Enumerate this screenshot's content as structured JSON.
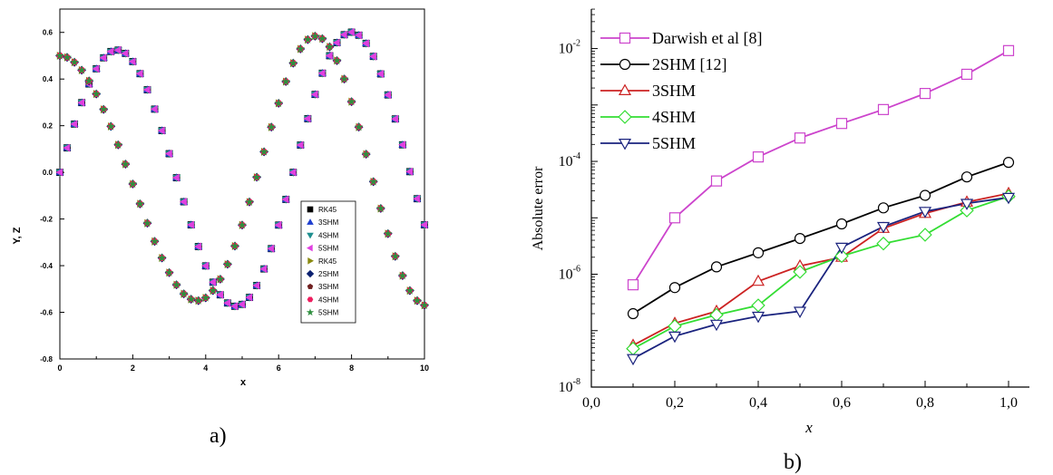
{
  "chart_data": [
    {
      "panel_label": "a)",
      "type": "scatter",
      "xlabel": "x",
      "ylabel": "Y, Z",
      "xlim": [
        0,
        10
      ],
      "ylim": [
        -0.8,
        0.7
      ],
      "x_ticks": [
        "0",
        "2",
        "4",
        "6",
        "8",
        "10"
      ],
      "y_ticks": [
        "-0.8",
        "-0.6",
        "-0.4",
        "-0.2",
        "0.0",
        "0.2",
        "0.4",
        "0.6"
      ],
      "grid": false,
      "legend_position": "center-right",
      "x": [
        0,
        0.2,
        0.4,
        0.6,
        0.8,
        1,
        1.2,
        1.4,
        1.6,
        1.8,
        2,
        2.2,
        2.4,
        2.6,
        2.8,
        3,
        3.2,
        3.4,
        3.6,
        3.8,
        4,
        4.2,
        4.4,
        4.6,
        4.8,
        5,
        5.2,
        5.4,
        5.6,
        5.8,
        6,
        6.2,
        6.4,
        6.6,
        6.8,
        7,
        7.2,
        7.4,
        7.6,
        7.8,
        8,
        8.2,
        8.4,
        8.6,
        8.8,
        9,
        9.2,
        9.4,
        9.6,
        9.8,
        10
      ],
      "series": [
        {
          "name": "RK45",
          "marker": "square",
          "color": "#000000",
          "values": [
            0,
            0.105,
            0.207,
            0.299,
            0.379,
            0.444,
            0.491,
            0.518,
            0.524,
            0.51,
            0.475,
            0.423,
            0.354,
            0.271,
            0.179,
            0.08,
            -0.023,
            -0.126,
            -0.225,
            -0.318,
            -0.401,
            -0.471,
            -0.525,
            -0.56,
            -0.574,
            -0.566,
            -0.536,
            -0.485,
            -0.414,
            -0.327,
            -0.226,
            -0.116,
            0,
            0.117,
            0.23,
            0.334,
            0.425,
            0.5,
            0.556,
            0.59,
            0.601,
            0.588,
            0.553,
            0.497,
            0.422,
            0.332,
            0.229,
            0.118,
            0.003,
            -0.113,
            -0.225
          ]
        },
        {
          "name": "3SHM",
          "marker": "triangle-up",
          "color": "#1f3fd0",
          "values": [
            0,
            0.105,
            0.207,
            0.299,
            0.379,
            0.444,
            0.491,
            0.518,
            0.524,
            0.51,
            0.475,
            0.423,
            0.354,
            0.271,
            0.179,
            0.08,
            -0.023,
            -0.126,
            -0.225,
            -0.318,
            -0.401,
            -0.471,
            -0.525,
            -0.56,
            -0.574,
            -0.566,
            -0.536,
            -0.485,
            -0.414,
            -0.327,
            -0.226,
            -0.116,
            0,
            0.117,
            0.23,
            0.334,
            0.425,
            0.5,
            0.556,
            0.59,
            0.601,
            0.588,
            0.553,
            0.497,
            0.422,
            0.332,
            0.229,
            0.118,
            0.003,
            -0.113,
            -0.225
          ]
        },
        {
          "name": "4SHM",
          "marker": "triangle-down",
          "color": "#1f8f8f",
          "values": [
            0,
            0.105,
            0.207,
            0.299,
            0.379,
            0.444,
            0.491,
            0.518,
            0.524,
            0.51,
            0.475,
            0.423,
            0.354,
            0.271,
            0.179,
            0.08,
            -0.023,
            -0.126,
            -0.225,
            -0.318,
            -0.401,
            -0.471,
            -0.525,
            -0.56,
            -0.574,
            -0.566,
            -0.536,
            -0.485,
            -0.414,
            -0.327,
            -0.226,
            -0.116,
            0,
            0.117,
            0.23,
            0.334,
            0.425,
            0.5,
            0.556,
            0.59,
            0.601,
            0.588,
            0.553,
            0.497,
            0.422,
            0.332,
            0.229,
            0.118,
            0.003,
            -0.113,
            -0.225
          ]
        },
        {
          "name": "5SHM",
          "marker": "triangle-left",
          "color": "#e040e0",
          "values": [
            0,
            0.105,
            0.207,
            0.299,
            0.379,
            0.444,
            0.491,
            0.518,
            0.524,
            0.51,
            0.475,
            0.423,
            0.354,
            0.271,
            0.179,
            0.08,
            -0.023,
            -0.126,
            -0.225,
            -0.318,
            -0.401,
            -0.471,
            -0.525,
            -0.56,
            -0.574,
            -0.566,
            -0.536,
            -0.485,
            -0.414,
            -0.327,
            -0.226,
            -0.116,
            0,
            0.117,
            0.23,
            0.334,
            0.425,
            0.5,
            0.556,
            0.59,
            0.601,
            0.588,
            0.553,
            0.497,
            0.422,
            0.332,
            0.229,
            0.118,
            0.003,
            -0.113,
            -0.225
          ]
        },
        {
          "name": "RK45",
          "marker": "triangle-right",
          "color": "#8a8a10",
          "values": [
            0.5,
            0.493,
            0.472,
            0.438,
            0.392,
            0.336,
            0.27,
            0.197,
            0.118,
            0.035,
            -0.05,
            -0.135,
            -0.218,
            -0.296,
            -0.367,
            -0.43,
            -0.482,
            -0.521,
            -0.544,
            -0.55,
            -0.538,
            -0.507,
            -0.458,
            -0.394,
            -0.316,
            -0.226,
            -0.127,
            -0.021,
            0.088,
            0.194,
            0.296,
            0.389,
            0.468,
            0.529,
            0.569,
            0.584,
            0.573,
            0.538,
            0.479,
            0.4,
            0.303,
            0.194,
            0.078,
            -0.04,
            -0.155,
            -0.263,
            -0.36,
            -0.443,
            -0.507,
            -0.55,
            -0.57
          ]
        },
        {
          "name": "2SHM",
          "marker": "diamond",
          "color": "#0a1f6f",
          "values": [
            0.5,
            0.493,
            0.472,
            0.438,
            0.392,
            0.336,
            0.27,
            0.197,
            0.118,
            0.035,
            -0.05,
            -0.135,
            -0.218,
            -0.296,
            -0.367,
            -0.43,
            -0.482,
            -0.521,
            -0.544,
            -0.55,
            -0.538,
            -0.507,
            -0.458,
            -0.394,
            -0.316,
            -0.226,
            -0.127,
            -0.021,
            0.088,
            0.194,
            0.296,
            0.389,
            0.468,
            0.529,
            0.569,
            0.584,
            0.573,
            0.538,
            0.479,
            0.4,
            0.303,
            0.194,
            0.078,
            -0.04,
            -0.155,
            -0.263,
            -0.36,
            -0.443,
            -0.507,
            -0.55,
            -0.57
          ]
        },
        {
          "name": "3SHM",
          "marker": "pentagon",
          "color": "#6f1f1f",
          "values": [
            0.5,
            0.493,
            0.472,
            0.438,
            0.392,
            0.336,
            0.27,
            0.197,
            0.118,
            0.035,
            -0.05,
            -0.135,
            -0.218,
            -0.296,
            -0.367,
            -0.43,
            -0.482,
            -0.521,
            -0.544,
            -0.55,
            -0.538,
            -0.507,
            -0.458,
            -0.394,
            -0.316,
            -0.226,
            -0.127,
            -0.021,
            0.088,
            0.194,
            0.296,
            0.389,
            0.468,
            0.529,
            0.569,
            0.584,
            0.573,
            0.538,
            0.479,
            0.4,
            0.303,
            0.194,
            0.078,
            -0.04,
            -0.155,
            -0.263,
            -0.36,
            -0.443,
            -0.507,
            -0.55,
            -0.57
          ]
        },
        {
          "name": "4SHM",
          "marker": "hexagon",
          "color": "#ee1f5f",
          "values": [
            0.5,
            0.493,
            0.472,
            0.438,
            0.392,
            0.336,
            0.27,
            0.197,
            0.118,
            0.035,
            -0.05,
            -0.135,
            -0.218,
            -0.296,
            -0.367,
            -0.43,
            -0.482,
            -0.521,
            -0.544,
            -0.55,
            -0.538,
            -0.507,
            -0.458,
            -0.394,
            -0.316,
            -0.226,
            -0.127,
            -0.021,
            0.088,
            0.194,
            0.296,
            0.389,
            0.468,
            0.529,
            0.569,
            0.584,
            0.573,
            0.538,
            0.479,
            0.4,
            0.303,
            0.194,
            0.078,
            -0.04,
            -0.155,
            -0.263,
            -0.36,
            -0.443,
            -0.507,
            -0.55,
            -0.57
          ]
        },
        {
          "name": "5SHM",
          "marker": "star",
          "color": "#2f8f3f",
          "values": [
            0.5,
            0.493,
            0.472,
            0.438,
            0.392,
            0.336,
            0.27,
            0.197,
            0.118,
            0.035,
            -0.05,
            -0.135,
            -0.218,
            -0.296,
            -0.367,
            -0.43,
            -0.482,
            -0.521,
            -0.544,
            -0.55,
            -0.538,
            -0.507,
            -0.458,
            -0.394,
            -0.316,
            -0.226,
            -0.127,
            -0.021,
            0.088,
            0.194,
            0.296,
            0.389,
            0.468,
            0.529,
            0.569,
            0.584,
            0.573,
            0.538,
            0.479,
            0.4,
            0.303,
            0.194,
            0.078,
            -0.04,
            -0.155,
            -0.263,
            -0.36,
            -0.443,
            -0.507,
            -0.55,
            -0.57
          ]
        }
      ]
    },
    {
      "panel_label": "b)",
      "type": "line",
      "xlabel": "x",
      "ylabel": "Absolute error",
      "xlim": [
        0,
        1.05
      ],
      "ylim_log10": [
        -8,
        -1.3
      ],
      "log_y": true,
      "x_ticks": [
        "0,0",
        "0,2",
        "0,4",
        "0,6",
        "0,8",
        "1,0"
      ],
      "y_ticks": [
        {
          "base": "10",
          "exp": "-8"
        },
        {
          "base": "10",
          "exp": "-6"
        },
        {
          "base": "10",
          "exp": "-4"
        },
        {
          "base": "10",
          "exp": "-2"
        }
      ],
      "grid": false,
      "legend_position": "top-left",
      "x": [
        0.1,
        0.2,
        0.3,
        0.4,
        0.5,
        0.6,
        0.7,
        0.8,
        0.9,
        1.0
      ],
      "series": [
        {
          "name": "Darwish et al [8]",
          "marker": "square",
          "color": "#cc44cc",
          "values": [
            6.5e-07,
            1e-05,
            4.5e-05,
            0.00012,
            0.00026,
            0.00047,
            0.00083,
            0.0016,
            0.0035,
            0.0092
          ]
        },
        {
          "name": "2SHM [12]",
          "marker": "circle",
          "color": "#000000",
          "values": [
            2e-07,
            5.8e-07,
            1.35e-06,
            2.4e-06,
            4.3e-06,
            7.8e-06,
            1.5e-05,
            2.5e-05,
            5.3e-05,
            9.6e-05
          ]
        },
        {
          "name": "3SHM",
          "marker": "triangle-up",
          "color": "#cc2222",
          "values": [
            5.5e-08,
            1.35e-07,
            2.2e-07,
            7.5e-07,
            1.4e-06,
            2e-06,
            6.5e-06,
            1.2e-05,
            1.9e-05,
            2.7e-05
          ]
        },
        {
          "name": "4SHM",
          "marker": "diamond",
          "color": "#33dd33",
          "values": [
            4.8e-08,
            1.2e-07,
            1.9e-07,
            2.8e-07,
            1.1e-06,
            2.1e-06,
            3.5e-06,
            5e-06,
            1.35e-05,
            2.4e-05
          ]
        },
        {
          "name": "5SHM",
          "marker": "triangle-down",
          "color": "#1a237e",
          "values": [
            3.2e-08,
            8e-08,
            1.3e-07,
            1.8e-07,
            2.2e-07,
            3e-06,
            7e-06,
            1.3e-05,
            1.8e-05,
            2.3e-05
          ]
        }
      ]
    }
  ]
}
